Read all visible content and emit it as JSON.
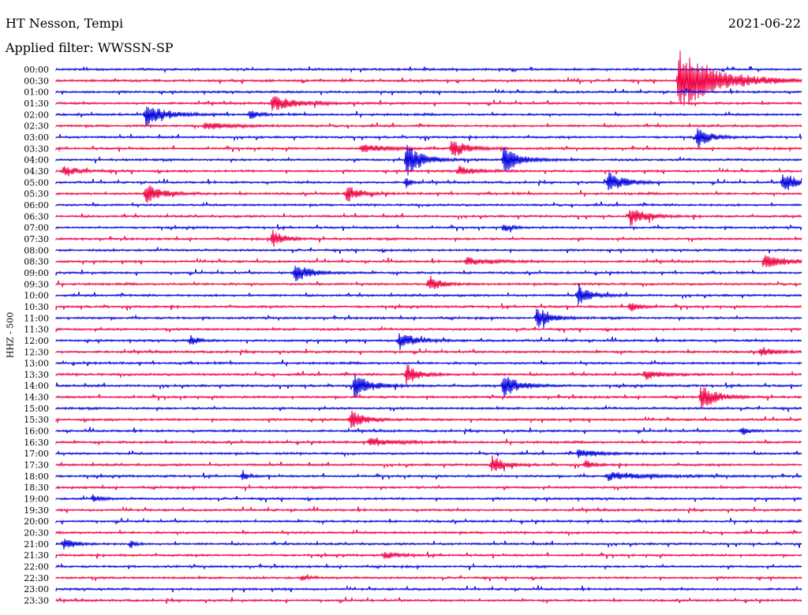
{
  "header": {
    "station": "HT Nesson, Tempi",
    "date": "2021-06-22",
    "filter": "Applied filter: WWSSN-SP"
  },
  "chart_data": {
    "type": "line",
    "title": "HT Nesson, Tempi",
    "ylabel": "HHZ - 500",
    "colors": {
      "even": "#0000dd",
      "odd": "#ee0044"
    },
    "rows": [
      {
        "label": "00:00",
        "events": []
      },
      {
        "label": "00:30",
        "events": [
          {
            "x": 0.835,
            "amp": 40,
            "dur": 0.05
          }
        ]
      },
      {
        "label": "01:00",
        "events": []
      },
      {
        "label": "01:30",
        "events": [
          {
            "x": 0.29,
            "amp": 10,
            "dur": 0.03
          }
        ]
      },
      {
        "label": "02:00",
        "events": [
          {
            "x": 0.12,
            "amp": 14,
            "dur": 0.025
          },
          {
            "x": 0.26,
            "amp": 6,
            "dur": 0.01
          }
        ]
      },
      {
        "label": "02:30",
        "events": [
          {
            "x": 0.2,
            "amp": 5,
            "dur": 0.03
          }
        ]
      },
      {
        "label": "03:00",
        "events": [
          {
            "x": 0.86,
            "amp": 14,
            "dur": 0.015
          }
        ]
      },
      {
        "label": "03:30",
        "events": [
          {
            "x": 0.41,
            "amp": 6,
            "dur": 0.03
          },
          {
            "x": 0.53,
            "amp": 12,
            "dur": 0.02
          }
        ]
      },
      {
        "label": "04:00",
        "events": [
          {
            "x": 0.47,
            "amp": 22,
            "dur": 0.02
          },
          {
            "x": 0.6,
            "amp": 18,
            "dur": 0.02
          }
        ]
      },
      {
        "label": "04:30",
        "events": [
          {
            "x": 0.01,
            "amp": 6,
            "dur": 0.02
          },
          {
            "x": 0.54,
            "amp": 6,
            "dur": 0.02
          }
        ]
      },
      {
        "label": "05:00",
        "events": [
          {
            "x": 0.74,
            "amp": 14,
            "dur": 0.02
          },
          {
            "x": 0.975,
            "amp": 14,
            "dur": 0.02
          },
          {
            "x": 0.47,
            "amp": 10,
            "dur": 0.005
          }
        ]
      },
      {
        "label": "05:30",
        "events": [
          {
            "x": 0.12,
            "amp": 14,
            "dur": 0.02
          },
          {
            "x": 0.39,
            "amp": 12,
            "dur": 0.015
          }
        ]
      },
      {
        "label": "06:00",
        "events": []
      },
      {
        "label": "06:30",
        "events": [
          {
            "x": 0.77,
            "amp": 12,
            "dur": 0.02
          }
        ]
      },
      {
        "label": "07:00",
        "events": [
          {
            "x": 0.6,
            "amp": 6,
            "dur": 0.01
          }
        ]
      },
      {
        "label": "07:30",
        "events": [
          {
            "x": 0.29,
            "amp": 12,
            "dur": 0.015
          }
        ]
      },
      {
        "label": "08:00",
        "events": []
      },
      {
        "label": "08:30",
        "events": [
          {
            "x": 0.95,
            "amp": 8,
            "dur": 0.03
          },
          {
            "x": 0.55,
            "amp": 5,
            "dur": 0.03
          }
        ]
      },
      {
        "label": "09:00",
        "events": [
          {
            "x": 0.32,
            "amp": 12,
            "dur": 0.02
          }
        ]
      },
      {
        "label": "09:30",
        "events": [
          {
            "x": 0.5,
            "amp": 10,
            "dur": 0.015
          }
        ]
      },
      {
        "label": "10:00",
        "events": [
          {
            "x": 0.7,
            "amp": 14,
            "dur": 0.015
          }
        ]
      },
      {
        "label": "10:30",
        "events": [
          {
            "x": 0.77,
            "amp": 8,
            "dur": 0.01
          }
        ]
      },
      {
        "label": "11:00",
        "events": [
          {
            "x": 0.645,
            "amp": 16,
            "dur": 0.015
          }
        ]
      },
      {
        "label": "11:30",
        "events": []
      },
      {
        "label": "12:00",
        "events": [
          {
            "x": 0.46,
            "amp": 12,
            "dur": 0.02
          },
          {
            "x": 0.18,
            "amp": 8,
            "dur": 0.008
          }
        ]
      },
      {
        "label": "12:30",
        "events": [
          {
            "x": 0.945,
            "amp": 5,
            "dur": 0.02
          }
        ]
      },
      {
        "label": "13:00",
        "events": []
      },
      {
        "label": "13:30",
        "events": [
          {
            "x": 0.47,
            "amp": 14,
            "dur": 0.015
          },
          {
            "x": 0.79,
            "amp": 6,
            "dur": 0.02
          }
        ]
      },
      {
        "label": "14:00",
        "events": [
          {
            "x": 0.4,
            "amp": 16,
            "dur": 0.02
          },
          {
            "x": 0.6,
            "amp": 16,
            "dur": 0.02
          }
        ]
      },
      {
        "label": "14:30",
        "events": [
          {
            "x": 0.865,
            "amp": 16,
            "dur": 0.02
          }
        ]
      },
      {
        "label": "15:00",
        "events": []
      },
      {
        "label": "15:30",
        "events": [
          {
            "x": 0.395,
            "amp": 14,
            "dur": 0.015
          }
        ]
      },
      {
        "label": "16:00",
        "events": [
          {
            "x": 0.92,
            "amp": 6,
            "dur": 0.008
          }
        ]
      },
      {
        "label": "16:30",
        "events": [
          {
            "x": 0.42,
            "amp": 5,
            "dur": 0.03
          }
        ]
      },
      {
        "label": "17:00",
        "events": [
          {
            "x": 0.7,
            "amp": 5,
            "dur": 0.03
          }
        ]
      },
      {
        "label": "17:30",
        "events": [
          {
            "x": 0.585,
            "amp": 12,
            "dur": 0.015
          },
          {
            "x": 0.71,
            "amp": 6,
            "dur": 0.01
          }
        ]
      },
      {
        "label": "18:00",
        "events": [
          {
            "x": 0.74,
            "amp": 5,
            "dur": 0.05
          },
          {
            "x": 0.25,
            "amp": 5,
            "dur": 0.008
          }
        ]
      },
      {
        "label": "18:30",
        "events": []
      },
      {
        "label": "19:00",
        "events": [
          {
            "x": 0.05,
            "amp": 5,
            "dur": 0.01
          }
        ]
      },
      {
        "label": "19:30",
        "events": []
      },
      {
        "label": "20:00",
        "events": []
      },
      {
        "label": "20:30",
        "events": []
      },
      {
        "label": "21:00",
        "events": [
          {
            "x": 0.01,
            "amp": 7,
            "dur": 0.015
          },
          {
            "x": 0.1,
            "amp": 6,
            "dur": 0.005
          }
        ]
      },
      {
        "label": "21:30",
        "events": [
          {
            "x": 0.44,
            "amp": 4,
            "dur": 0.02
          }
        ]
      },
      {
        "label": "22:00",
        "events": []
      },
      {
        "label": "22:30",
        "events": [
          {
            "x": 0.33,
            "amp": 3,
            "dur": 0.01
          }
        ]
      },
      {
        "label": "23:00",
        "events": []
      },
      {
        "label": "23:30",
        "events": []
      }
    ]
  }
}
